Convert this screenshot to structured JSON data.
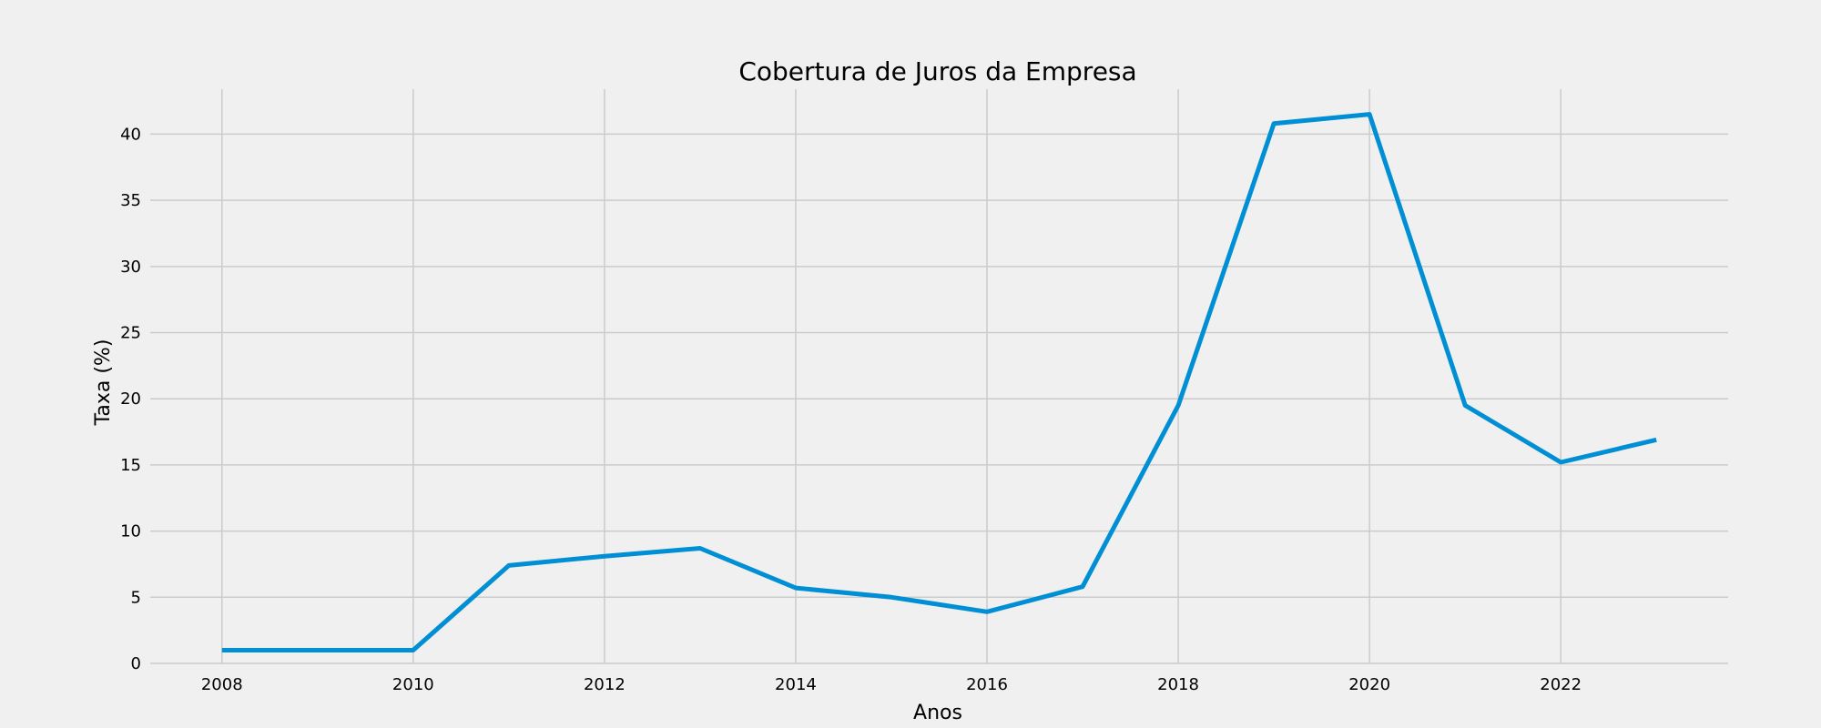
{
  "chart_data": {
    "type": "line",
    "title": "Cobertura de Juros da Empresa",
    "xlabel": "Anos",
    "ylabel": "Taxa (%)",
    "x": [
      2008,
      2009,
      2010,
      2011,
      2012,
      2013,
      2014,
      2015,
      2016,
      2017,
      2018,
      2019,
      2020,
      2021,
      2022,
      2023
    ],
    "series": [
      {
        "values": [
          1.0,
          1.0,
          1.0,
          7.4,
          8.1,
          8.7,
          5.7,
          5.0,
          3.9,
          5.8,
          19.5,
          40.8,
          41.5,
          19.5,
          15.2,
          16.9
        ],
        "color": "#008fd5"
      }
    ],
    "xlim": [
      2007.25,
      2023.75
    ],
    "ylim": [
      0,
      43.4
    ],
    "xticks": [
      2008,
      2010,
      2012,
      2014,
      2016,
      2018,
      2020,
      2022
    ],
    "yticks": [
      0,
      5,
      10,
      15,
      20,
      25,
      30,
      35,
      40
    ],
    "grid": true,
    "legend": "none",
    "colors": {
      "background": "#f0f0f0",
      "grid": "#cbcbcb",
      "line": "#008fd5"
    }
  }
}
